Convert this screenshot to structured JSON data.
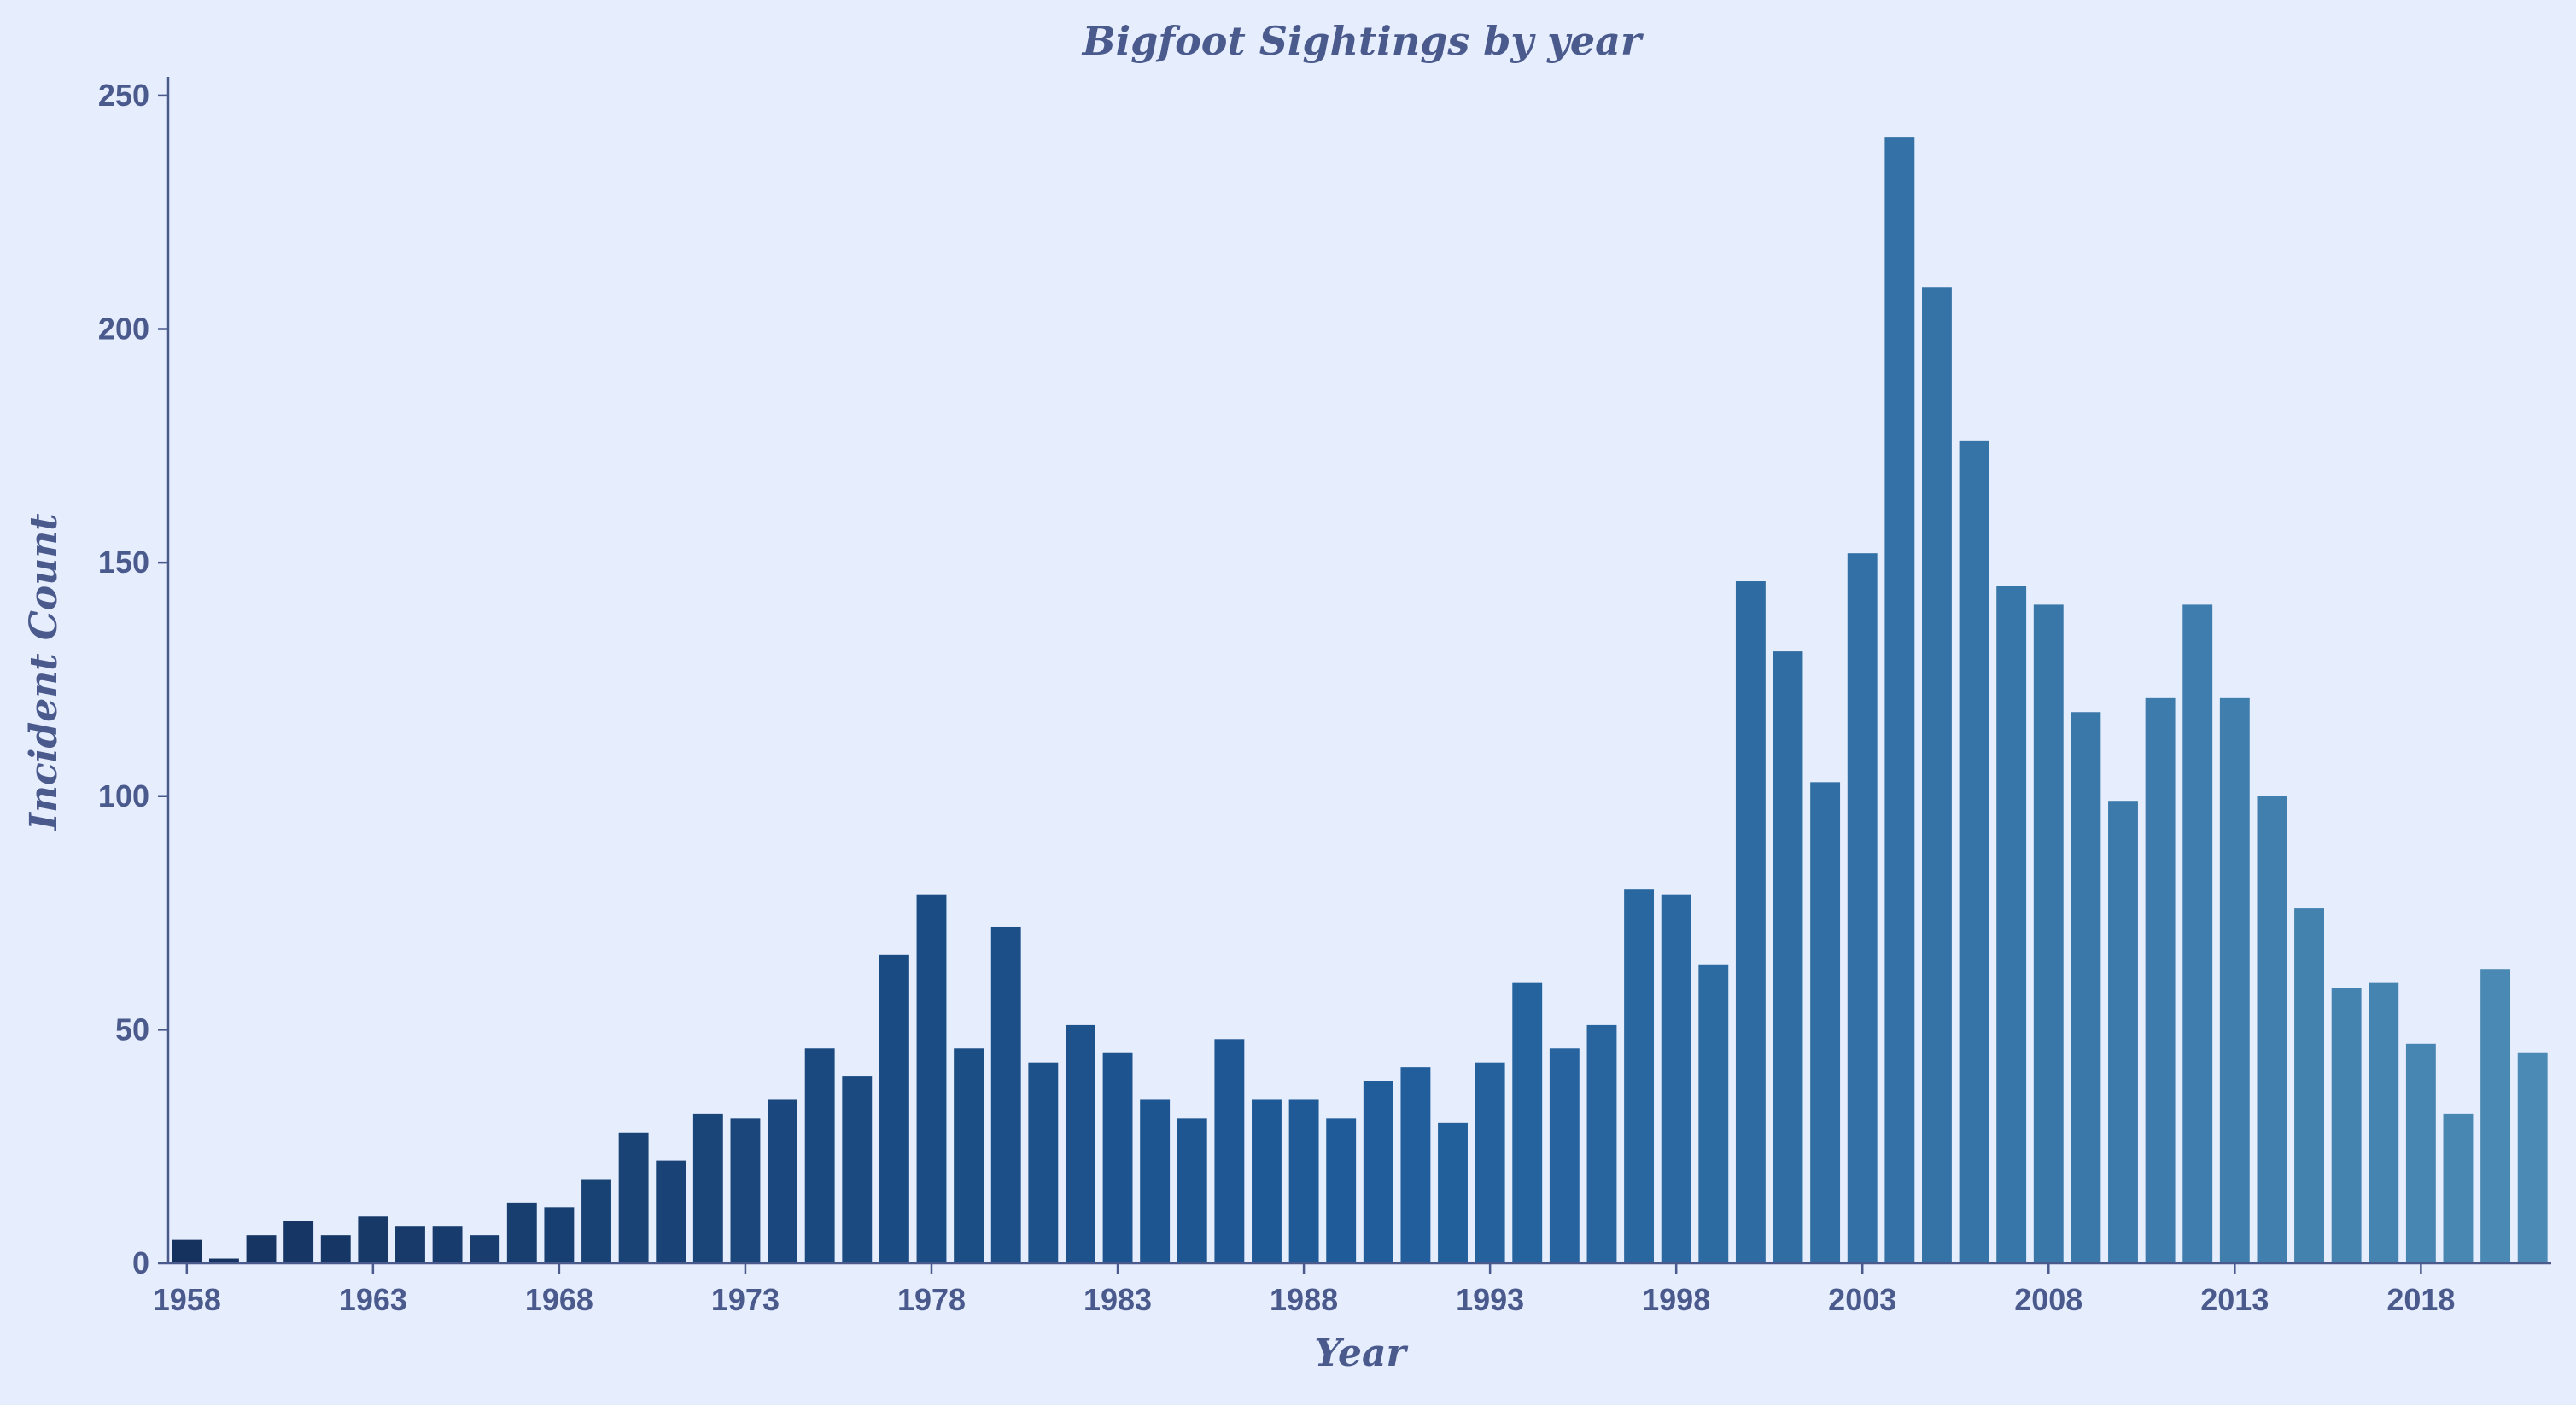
{
  "chart_data": {
    "type": "bar",
    "title": "Bigfoot Sightings by year",
    "xlabel": "Year",
    "ylabel": "Incident Count",
    "ylim": [
      0,
      254
    ],
    "yticks": [
      0,
      50,
      100,
      150,
      200,
      250
    ],
    "xtick_labels": [
      "1958",
      "1963",
      "1968",
      "1973",
      "1978",
      "1983",
      "1988",
      "1993",
      "1998",
      "2003",
      "2008",
      "2013",
      "2018"
    ],
    "grid": false,
    "legend": "none",
    "colors": {
      "start": "#15325f",
      "mid": "#1f5c9a",
      "end": "#4b8ab4",
      "text": "#4a5a8c",
      "background": "#e6edfd"
    },
    "categories": [
      1958,
      1959,
      1960,
      1961,
      1962,
      1963,
      1964,
      1965,
      1966,
      1967,
      1968,
      1969,
      1970,
      1971,
      1972,
      1973,
      1974,
      1975,
      1976,
      1977,
      1978,
      1979,
      1980,
      1981,
      1982,
      1983,
      1984,
      1985,
      1986,
      1987,
      1988,
      1989,
      1990,
      1991,
      1992,
      1993,
      1994,
      1995,
      1996,
      1997,
      1998,
      1999,
      2000,
      2001,
      2002,
      2003,
      2004,
      2005,
      2006,
      2007,
      2008,
      2009,
      2010,
      2011,
      2012,
      2013,
      2014,
      2015,
      2016,
      2017,
      2018,
      2019,
      2020,
      2021
    ],
    "values": [
      5,
      1,
      6,
      9,
      6,
      10,
      8,
      8,
      6,
      13,
      12,
      18,
      28,
      22,
      32,
      31,
      35,
      46,
      40,
      66,
      79,
      46,
      72,
      43,
      51,
      45,
      35,
      31,
      48,
      35,
      35,
      31,
      39,
      42,
      30,
      43,
      60,
      46,
      51,
      80,
      79,
      64,
      146,
      131,
      103,
      152,
      241,
      209,
      176,
      145,
      141,
      118,
      99,
      121,
      141,
      121,
      100,
      76,
      59,
      60,
      47,
      32,
      63,
      45
    ]
  }
}
